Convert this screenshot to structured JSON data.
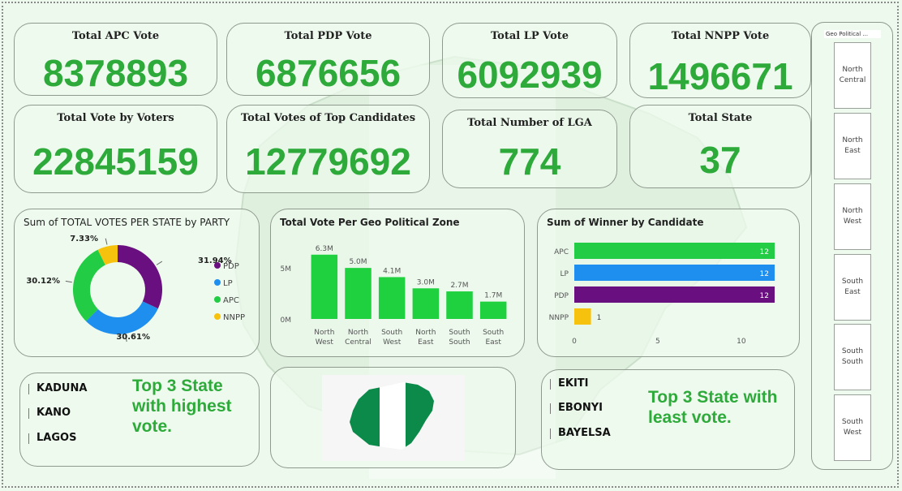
{
  "kpis": {
    "apc": {
      "title": "Total APC Vote",
      "value": "8378893"
    },
    "pdp": {
      "title": "Total PDP Vote",
      "value": "6876656"
    },
    "lp": {
      "title": "Total LP Vote",
      "value": "6092939"
    },
    "nnpp": {
      "title": "Total NNPP Vote",
      "value": "1496671"
    },
    "voters": {
      "title": "Total Vote by Voters",
      "value": "22845159"
    },
    "top_candidates": {
      "title": "Total Votes of Top Candidates",
      "value": "12779692"
    },
    "lga": {
      "title": "Total Number of LGA",
      "value": "774"
    },
    "states": {
      "title": "Total State",
      "value": "37"
    }
  },
  "colors": {
    "pdp": "#6a0f7f",
    "lp": "#1f8fef",
    "apc": "#22cc44",
    "nnpp": "#f7c20d",
    "zone_bar": "#1fd13e"
  },
  "chart_data": [
    {
      "type": "pie",
      "title": "Sum of TOTAL VOTES PER STATE by PARTY",
      "legend_position": "right",
      "slices": [
        {
          "label": "PDP",
          "value": 31.94,
          "data_label": "31.94%",
          "color": "#6a0f7f"
        },
        {
          "label": "LP",
          "value": 30.61,
          "data_label": "30.61%",
          "color": "#1f8fef"
        },
        {
          "label": "APC",
          "value": 30.12,
          "data_label": "30.12%",
          "color": "#22cc44"
        },
        {
          "label": "NNPP",
          "value": 7.33,
          "data_label": "7.33%",
          "color": "#f7c20d"
        }
      ]
    },
    {
      "type": "bar",
      "title": "Total Vote Per Geo Political Zone",
      "categories": [
        "North West",
        "North Central",
        "South West",
        "North East",
        "South South",
        "South East"
      ],
      "values": [
        6.3,
        5.0,
        4.1,
        3.0,
        2.7,
        1.7
      ],
      "data_labels": [
        "6.3M",
        "5.0M",
        "4.1M",
        "3.0M",
        "2.7M",
        "1.7M"
      ],
      "ylim": [
        0,
        7
      ],
      "yticks": [
        {
          "value": 0,
          "label": "0M"
        },
        {
          "value": 5,
          "label": "5M"
        }
      ],
      "grid": false
    },
    {
      "type": "bar",
      "orientation": "horizontal",
      "title": "Sum of Winner by Candidate",
      "categories": [
        "APC",
        "LP",
        "PDP",
        "NNPP"
      ],
      "values": [
        12,
        12,
        12,
        1
      ],
      "data_labels": [
        "12",
        "12",
        "12",
        "1"
      ],
      "colors": [
        "#22cc44",
        "#1f8fef",
        "#6a0f7f",
        "#f7c20d"
      ],
      "xlim": [
        0,
        12
      ],
      "xticks": [
        0,
        5,
        10
      ],
      "grid": false
    }
  ],
  "top_states": {
    "items": [
      "KADUNA",
      "KANO",
      "LAGOS"
    ],
    "note_lines": [
      "Top 3 State",
      "with highest",
      "vote."
    ]
  },
  "least_states": {
    "items": [
      "EKITI",
      "EBONYI",
      "BAYELSA"
    ],
    "note_lines": [
      "Top 3 State with",
      "least vote."
    ]
  },
  "slicer": {
    "header": "Geo Political ...",
    "items": [
      "North\nCentral",
      "North\nEast",
      "North\nWest",
      "South\nEast",
      "South\nSouth",
      "South\nWest"
    ]
  }
}
